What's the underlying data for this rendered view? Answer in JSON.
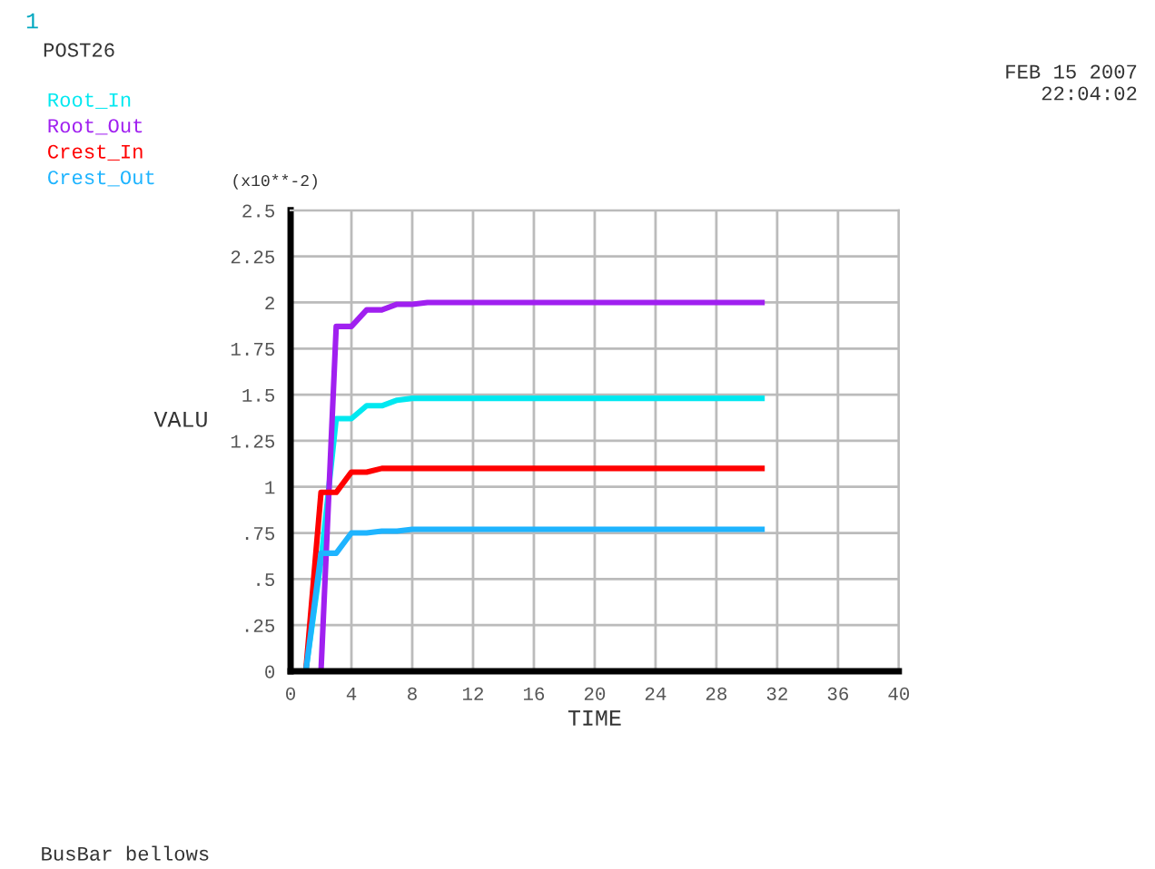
{
  "chart_data": {
    "type": "line",
    "xlabel": "TIME",
    "ylabel": "VALU",
    "annotations": [
      "1",
      "POST26",
      "FEB 15 2007",
      "22:04:02",
      "(x10**-2)",
      "BusBar bellows"
    ],
    "x": [
      1,
      2,
      3,
      4,
      5,
      6,
      7,
      8,
      9,
      31
    ],
    "series": [
      {
        "name": "Root_In",
        "color": "#00e8f0",
        "values": [
          0,
          0.6,
          1.37,
          1.37,
          1.44,
          1.44,
          1.47,
          1.48,
          1.48,
          1.48
        ]
      },
      {
        "name": "Root_Out",
        "color": "#a020f0",
        "values": [
          0,
          0,
          1.87,
          1.87,
          1.96,
          1.96,
          1.99,
          1.99,
          2.0,
          2.0
        ]
      },
      {
        "name": "Crest_In",
        "color": "#ff0000",
        "values": [
          0,
          0.97,
          0.97,
          1.08,
          1.08,
          1.1,
          1.1,
          1.1,
          1.1,
          1.1
        ]
      },
      {
        "name": "Crest_Out",
        "color": "#1eb4ff",
        "values": [
          0,
          0.64,
          0.64,
          0.75,
          0.75,
          0.76,
          0.76,
          0.77,
          0.77,
          0.77
        ]
      }
    ],
    "xlim": [
      0,
      40
    ],
    "xticks": [
      0,
      4,
      8,
      12,
      16,
      20,
      24,
      28,
      32,
      36,
      40
    ],
    "ylim": [
      0,
      2.5
    ],
    "yticks": [
      0,
      {
        "value": 0.25,
        "label": ".25"
      },
      {
        "value": 0.5,
        "label": ".5"
      },
      {
        "value": 0.75,
        "label": ".75"
      },
      1,
      1.25,
      1.5,
      1.75,
      2,
      2.25,
      2.5
    ],
    "grid": true,
    "legend": "top left",
    "marker": "none",
    "line_style": "solid"
  }
}
